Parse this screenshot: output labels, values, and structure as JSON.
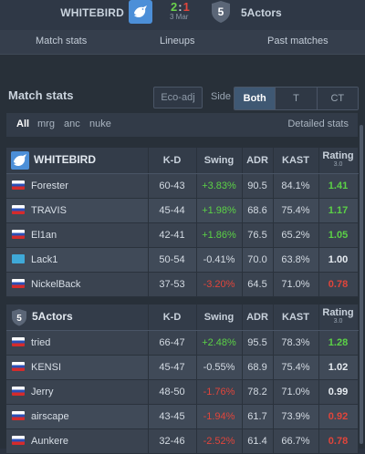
{
  "header": {
    "team_left": "WHITEBIRD",
    "team_right": "5Actors",
    "score_left": "2",
    "score_sep": ":",
    "score_right": "1",
    "date": "3 Mar",
    "right_logo_text": "5"
  },
  "tabs": [
    "Match stats",
    "Lineups",
    "Past matches"
  ],
  "panel": {
    "title": "Match stats",
    "eco_label": "Eco-adj",
    "side_label": "Side",
    "side_options": [
      "Both",
      "T",
      "CT"
    ],
    "side_selected": "Both",
    "filters": [
      "All",
      "mrg",
      "anc",
      "nuke"
    ],
    "filter_selected": "All",
    "detailed_label": "Detailed stats"
  },
  "columns": {
    "kd": "K-D",
    "swing": "Swing",
    "adr": "ADR",
    "kast": "KAST",
    "rating": "Rating",
    "rating_version": "3.0"
  },
  "teams": [
    {
      "name": "WHITEBIRD",
      "logo": "bird-icon",
      "players": [
        {
          "name": "Forester",
          "flag": "ru",
          "kd": "60-43",
          "swing": "+3.83%",
          "adr": "90.5",
          "kast": "84.1%",
          "rating": "1.41"
        },
        {
          "name": "TRAVIS",
          "flag": "ru",
          "kd": "45-44",
          "swing": "+1.98%",
          "adr": "68.6",
          "kast": "75.4%",
          "rating": "1.17"
        },
        {
          "name": "El1an",
          "flag": "ru",
          "kd": "42-41",
          "swing": "+1.86%",
          "adr": "76.5",
          "kast": "65.2%",
          "rating": "1.05"
        },
        {
          "name": "Lack1",
          "flag": "kz",
          "kd": "50-54",
          "swing": "-0.41%",
          "adr": "70.0",
          "kast": "63.8%",
          "rating": "1.00"
        },
        {
          "name": "NickelBack",
          "flag": "ru",
          "kd": "37-53",
          "swing": "-3.20%",
          "adr": "64.5",
          "kast": "71.0%",
          "rating": "0.78"
        }
      ]
    },
    {
      "name": "5Actors",
      "logo": "shield-5-icon",
      "logo_text": "5",
      "players": [
        {
          "name": "tried",
          "flag": "ru",
          "kd": "66-47",
          "swing": "+2.48%",
          "adr": "95.5",
          "kast": "78.3%",
          "rating": "1.28"
        },
        {
          "name": "KENSI",
          "flag": "ru",
          "kd": "45-47",
          "swing": "-0.55%",
          "adr": "68.9",
          "kast": "75.4%",
          "rating": "1.02"
        },
        {
          "name": "Jerry",
          "flag": "ru",
          "kd": "48-50",
          "swing": "-1.76%",
          "adr": "78.2",
          "kast": "71.0%",
          "rating": "0.99"
        },
        {
          "name": "airscape",
          "flag": "ru",
          "kd": "43-45",
          "swing": "-1.94%",
          "adr": "61.7",
          "kast": "73.9%",
          "rating": "0.92"
        },
        {
          "name": "Aunkere",
          "flag": "ru",
          "kd": "32-46",
          "swing": "-2.52%",
          "adr": "61.4",
          "kast": "66.7%",
          "rating": "0.78"
        }
      ]
    }
  ],
  "colors": {
    "positive": "#5bd146",
    "negative": "#e0453b",
    "accent_active": "#3f5873"
  }
}
